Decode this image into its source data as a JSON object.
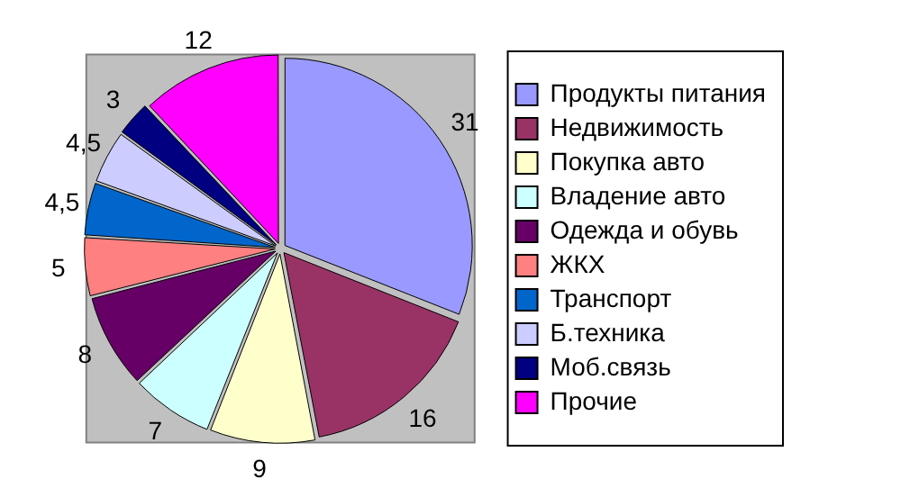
{
  "chart_data": {
    "type": "pie",
    "categories": [
      "Продукты питания",
      "Недвижимость",
      "Покупка авто",
      "Владение авто",
      "Одежда и обувь",
      "ЖКХ",
      "Транспорт",
      "Б.техника",
      "Моб.связь",
      "Прочие"
    ],
    "values": [
      31,
      16,
      9,
      7,
      8,
      5,
      4.5,
      4.5,
      3,
      12
    ],
    "colors": [
      "#9999ff",
      "#993366",
      "#ffffcc",
      "#ccffff",
      "#660066",
      "#ff8080",
      "#0066cc",
      "#ccccff",
      "#000080",
      "#ff00ff"
    ],
    "value_labels": [
      "31",
      "16",
      "9",
      "7",
      "8",
      "5",
      "4,5",
      "4,5",
      "3",
      "12"
    ],
    "legend": "right"
  }
}
